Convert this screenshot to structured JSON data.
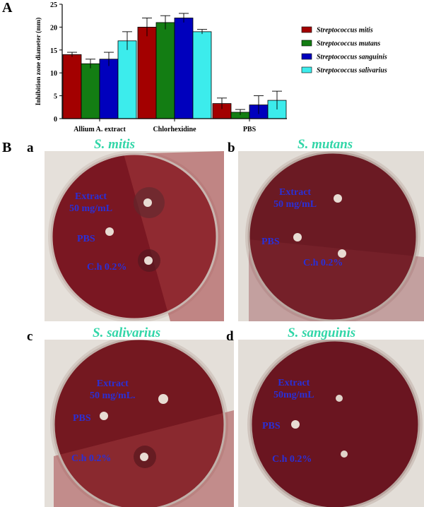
{
  "panel_a_letter": "A",
  "panel_b_letter": "B",
  "chart_data": {
    "type": "bar",
    "categories": [
      "Allium A. extract",
      "Chlorhexidine",
      "PBS"
    ],
    "ylabel": "Inhibition zone diameter (mm)",
    "xlabel": "",
    "ylim": [
      0,
      25
    ],
    "yticks": [
      0,
      5,
      10,
      15,
      20,
      25
    ],
    "legend_position": "right",
    "series": [
      {
        "name": "Streptococcus mitis",
        "color": "#a30000",
        "values": [
          14,
          20,
          3.3
        ],
        "errors": [
          0.5,
          2,
          1.2
        ]
      },
      {
        "name": "Streptococcus mutans",
        "color": "#137d13",
        "values": [
          12,
          21,
          1.4
        ],
        "errors": [
          1,
          1.5,
          0.6
        ]
      },
      {
        "name": "Streptococcus sanguinis",
        "color": "#0000bd",
        "values": [
          13,
          22,
          3
        ],
        "errors": [
          1.5,
          1,
          2
        ]
      },
      {
        "name": "Streptococcus salivarius",
        "color": "#3cecec",
        "values": [
          17,
          19,
          4
        ],
        "errors": [
          2,
          0.5,
          2
        ]
      }
    ]
  },
  "plates": [
    {
      "letter": "a",
      "species": "S. mitis",
      "extract": "Extract",
      "conc": "50 mg/mL",
      "pbs": "PBS",
      "ch": "C.h 0.2%"
    },
    {
      "letter": "b",
      "species": "S. mutans",
      "extract": "Extract",
      "conc": "50 mg/mL",
      "pbs": "PBS",
      "ch": "C.h 0.2%"
    },
    {
      "letter": "c",
      "species": "S. salivarius",
      "extract": "Extract",
      "conc": "50 mg/mL.",
      "pbs": "PBS",
      "ch": "C.h 0.2%"
    },
    {
      "letter": "d",
      "species": "S. sanguinis",
      "extract": "Extract",
      "conc": "50mg/mL",
      "pbs": "PBS",
      "ch": "C.h 0.2%"
    }
  ]
}
